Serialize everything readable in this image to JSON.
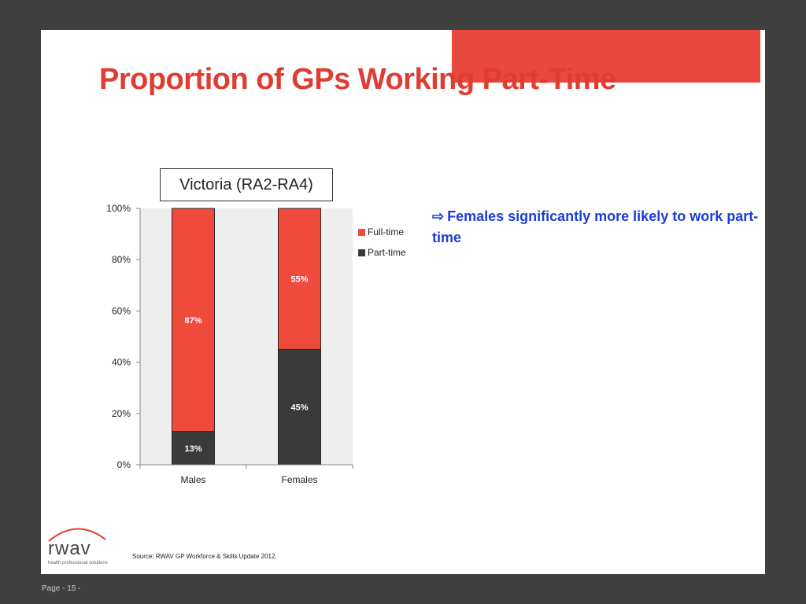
{
  "slide": {
    "title": "Proportion of GPs Working Part-Time",
    "note": "Females significantly more likely to work part-time",
    "note_icon": "arrow-right-icon",
    "source": "Source: RWAV GP Workforce & Skills Update 2012.",
    "page": "Page - 15 -",
    "logo_text": "rwav",
    "logo_tagline": "health professional solutions",
    "colors": {
      "accent": "#e8483d",
      "title": "#e03c31",
      "note": "#1a3fd6",
      "background": "#404040"
    }
  },
  "chart_data": {
    "type": "bar",
    "stacked": true,
    "percent": true,
    "title": "Victoria (RA2-RA4)",
    "categories": [
      "Males",
      "Females"
    ],
    "series": [
      {
        "name": "Part-time",
        "values": [
          13,
          45
        ],
        "labels": [
          "13%",
          "45%"
        ],
        "color": "#3a3a3a"
      },
      {
        "name": "Full-time",
        "values": [
          87,
          55
        ],
        "labels": [
          "87%",
          "55%"
        ],
        "color": "#f04a3d"
      }
    ],
    "legend_order": [
      "Full-time",
      "Part-time"
    ],
    "legend_position": "right",
    "ylim": [
      0,
      100
    ],
    "yticks": [
      "0%",
      "20%",
      "40%",
      "60%",
      "80%",
      "100%"
    ],
    "ytick_values": [
      0,
      20,
      40,
      60,
      80,
      100
    ],
    "grid": false
  }
}
